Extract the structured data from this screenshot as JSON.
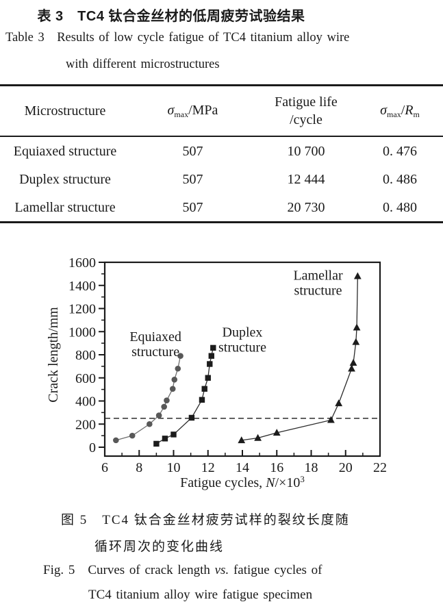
{
  "page": {
    "table_title_zh": "表 3　TC4 钛合金丝材的低周疲劳试验结果",
    "table_title_en_line1": "Table 3 Results of low cycle fatigue of TC4 titanium alloy wire",
    "table_title_en_line2": "with different microstructures"
  },
  "table": {
    "headers": {
      "col1": "Microstructure",
      "col2": {
        "sigma": "σ",
        "sub": "max",
        "unit": "/MPa"
      },
      "col3_line1": "Fatigue life",
      "col3_line2": "/cycle",
      "col4": {
        "sigma": "σ",
        "sub1": "max",
        "slash": "/",
        "r": "R",
        "sub2": "m"
      }
    },
    "rows": [
      {
        "microstructure": "Equiaxed structure",
        "sigma_max_mpa": "507",
        "fatigue_life_cycle": "10 700",
        "ratio": "0. 476"
      },
      {
        "microstructure": "Duplex structure",
        "sigma_max_mpa": "507",
        "fatigue_life_cycle": "12 444",
        "ratio": "0. 486"
      },
      {
        "microstructure": "Lamellar structure",
        "sigma_max_mpa": "507",
        "fatigue_life_cycle": "20 730",
        "ratio": "0. 480"
      }
    ]
  },
  "figure": {
    "caption_zh_line1": "图 5　TC4 钛合金丝材疲劳试样的裂纹长度随",
    "caption_zh_line2": "循环周次的变化曲线",
    "caption_en_prefix": "Fig. 5 Curves of crack length ",
    "caption_en_italic": "vs.",
    "caption_en_suffix": " fatigue cycles of",
    "caption_en_line2": "TC4 titanium alloy wire fatigue specimen"
  },
  "chart_data": {
    "type": "scatter",
    "title": "",
    "ylabel": "Crack length/mm",
    "xlabel_parts": {
      "prefix": "Fatigue cycles, ",
      "variable": "N",
      "mid": "/×10",
      "sup": "3"
    },
    "xlim": [
      6,
      22
    ],
    "x_major_step": 2,
    "x_minor_step": 1,
    "ylim": [
      0,
      1600
    ],
    "y_major_step": 200,
    "y_minor_step": 100,
    "grid": false,
    "dashed_line_y": 250,
    "axis_color": "#1a1a1a",
    "series": [
      {
        "name": "Equiaxed structure",
        "label_lines": [
          "Equiaxed",
          "structure"
        ],
        "label_xy": [
          8.95,
          960
        ],
        "marker": "circle",
        "marker_color": "#585858",
        "line_color": "#6f6f6f",
        "points": [
          [
            6.65,
            60
          ],
          [
            7.6,
            100
          ],
          [
            8.6,
            200
          ],
          [
            9.15,
            275
          ],
          [
            9.45,
            350
          ],
          [
            9.6,
            405
          ],
          [
            9.95,
            505
          ],
          [
            10.05,
            585
          ],
          [
            10.25,
            680
          ],
          [
            10.4,
            790
          ]
        ]
      },
      {
        "name": "Duplex structure",
        "label_lines": [
          "Duplex",
          "structure"
        ],
        "label_xy": [
          14.0,
          1000
        ],
        "marker": "square",
        "marker_color": "#1c1c1c",
        "line_color": "#2a2a2a",
        "points": [
          [
            9.0,
            30
          ],
          [
            9.5,
            75
          ],
          [
            10.0,
            110
          ],
          [
            11.05,
            255
          ],
          [
            11.65,
            410
          ],
          [
            11.8,
            505
          ],
          [
            12.0,
            600
          ],
          [
            12.1,
            720
          ],
          [
            12.2,
            790
          ],
          [
            12.3,
            860
          ]
        ]
      },
      {
        "name": "Lamellar structure",
        "label_lines": [
          "Lamellar",
          "structure"
        ],
        "label_xy": [
          18.4,
          1490
        ],
        "marker": "triangle",
        "marker_color": "#1c1c1c",
        "line_color": "#2a2a2a",
        "points": [
          [
            13.95,
            60
          ],
          [
            14.9,
            80
          ],
          [
            16.0,
            125
          ],
          [
            19.15,
            235
          ],
          [
            19.6,
            380
          ],
          [
            20.35,
            680
          ],
          [
            20.45,
            730
          ],
          [
            20.6,
            910
          ],
          [
            20.65,
            1035
          ],
          [
            20.7,
            1480
          ]
        ]
      }
    ]
  }
}
